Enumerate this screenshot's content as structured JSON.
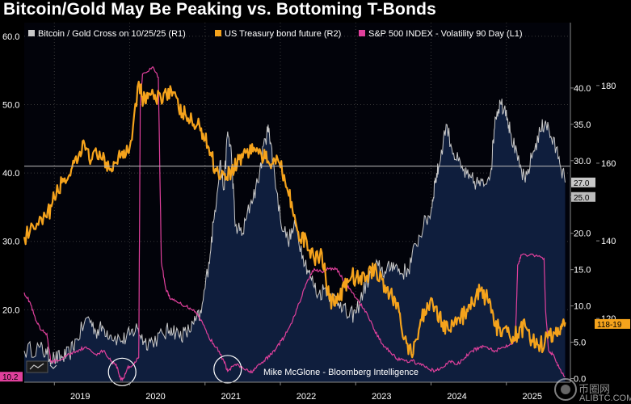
{
  "title": "Bitcoin/Gold May Be Peaking vs. Bottoming T-Bonds",
  "annotation": "Mike McGlone - Bloomberg Intelligence",
  "watermark": "币圈网",
  "watermark_url": "ALIBTC.COM",
  "colors": {
    "background": "#000000",
    "plot_bg": "#02030a",
    "area_fill": "#0f1e3d",
    "bitcoin_gold": "#c8c8c8",
    "treasury": "#f5a31c",
    "volatility": "#e0409c",
    "gridline": "#3a3a3a",
    "circle": "#ffffff"
  },
  "icons": {
    "chart_toggle": "chart-toggle-icon",
    "dropdown": "chevron-down-icon"
  },
  "chart_data": {
    "type": "line",
    "title": "Bitcoin/Gold May Be Peaking vs. Bottoming T-Bonds",
    "x_range": [
      2018.6,
      2025.85
    ],
    "x_ticks": [
      {
        "label": "2019",
        "value": 2019.0
      },
      {
        "label": "2020",
        "value": 2020.0
      },
      {
        "label": "2021",
        "value": 2021.0
      },
      {
        "label": "2022",
        "value": 2022.0
      },
      {
        "label": "2023",
        "value": 2023.0
      },
      {
        "label": "2024",
        "value": 2024.0
      },
      {
        "label": "2025",
        "value": 2025.0
      }
    ],
    "axes": {
      "L1": {
        "side": "left",
        "range": [
          9.4,
          62
        ],
        "ticks": [
          "20.0",
          "30.0",
          "40.0",
          "50.0",
          "60.0"
        ]
      },
      "R1": {
        "side": "right-inner",
        "range": [
          -0.5,
          49
        ],
        "ticks": [
          "0.0",
          "5.0",
          "10.0",
          "15.0",
          "20.0",
          "25.0",
          "30.0",
          "35.0",
          "40.0"
        ]
      },
      "R2": {
        "side": "right-outer",
        "range": [
          103.6,
          196.2
        ],
        "ticks": [
          "120",
          "140",
          "160",
          "180"
        ]
      }
    },
    "reference_line": {
      "axis": "L1",
      "value": 41
    },
    "series": [
      {
        "name": "Bitcoin / Gold Cross on 10/25/25 (R1)",
        "axis": "R1",
        "style": "area",
        "last_value_label": "27.0",
        "points": [
          [
            2018.6,
            3.8
          ],
          [
            2018.8,
            4.3
          ],
          [
            2018.9,
            3.3
          ],
          [
            2019.0,
            2.7
          ],
          [
            2019.1,
            2.9
          ],
          [
            2019.2,
            3.4
          ],
          [
            2019.3,
            5.5
          ],
          [
            2019.45,
            8.5
          ],
          [
            2019.55,
            6.5
          ],
          [
            2019.65,
            7.0
          ],
          [
            2019.75,
            6.0
          ],
          [
            2019.9,
            5.2
          ],
          [
            2020.0,
            6.0
          ],
          [
            2020.1,
            7.0
          ],
          [
            2020.2,
            5.0
          ],
          [
            2020.3,
            5.2
          ],
          [
            2020.45,
            6.0
          ],
          [
            2020.55,
            7.0
          ],
          [
            2020.65,
            6.0
          ],
          [
            2020.75,
            6.2
          ],
          [
            2020.85,
            7.5
          ],
          [
            2020.95,
            9.0
          ],
          [
            2021.05,
            16.0
          ],
          [
            2021.12,
            22.0
          ],
          [
            2021.2,
            30.0
          ],
          [
            2021.25,
            26.0
          ],
          [
            2021.3,
            34.0
          ],
          [
            2021.35,
            31.0
          ],
          [
            2021.4,
            21.0
          ],
          [
            2021.5,
            20.0
          ],
          [
            2021.6,
            24.0
          ],
          [
            2021.7,
            27.0
          ],
          [
            2021.8,
            33.0
          ],
          [
            2021.85,
            34.5
          ],
          [
            2021.9,
            30.0
          ],
          [
            2022.0,
            22.0
          ],
          [
            2022.1,
            19.0
          ],
          [
            2022.2,
            21.0
          ],
          [
            2022.3,
            17.0
          ],
          [
            2022.4,
            14.0
          ],
          [
            2022.5,
            11.5
          ],
          [
            2022.6,
            12.5
          ],
          [
            2022.7,
            11.0
          ],
          [
            2022.8,
            10.5
          ],
          [
            2022.9,
            8.5
          ],
          [
            2023.0,
            9.0
          ],
          [
            2023.1,
            12.0
          ],
          [
            2023.2,
            14.5
          ],
          [
            2023.3,
            15.5
          ],
          [
            2023.4,
            14.5
          ],
          [
            2023.5,
            16.0
          ],
          [
            2023.6,
            14.5
          ],
          [
            2023.7,
            15.0
          ],
          [
            2023.8,
            18.5
          ],
          [
            2023.9,
            21.0
          ],
          [
            2024.0,
            23.0
          ],
          [
            2024.05,
            27.0
          ],
          [
            2024.1,
            29.0
          ],
          [
            2024.2,
            35.0
          ],
          [
            2024.3,
            31.0
          ],
          [
            2024.4,
            29.0
          ],
          [
            2024.5,
            27.5
          ],
          [
            2024.6,
            27.0
          ],
          [
            2024.7,
            26.5
          ],
          [
            2024.8,
            29.0
          ],
          [
            2024.85,
            36.0
          ],
          [
            2024.92,
            38.0
          ],
          [
            2025.0,
            37.0
          ],
          [
            2025.05,
            34.0
          ],
          [
            2025.15,
            30.0
          ],
          [
            2025.25,
            27.0
          ],
          [
            2025.35,
            31.0
          ],
          [
            2025.45,
            34.0
          ],
          [
            2025.52,
            35.5
          ],
          [
            2025.6,
            33.0
          ],
          [
            2025.7,
            30.5
          ],
          [
            2025.78,
            27.0
          ]
        ]
      },
      {
        "name": "US Treasury bond future (R2)",
        "axis": "R2",
        "style": "line",
        "last_value_label": "118-19",
        "points": [
          [
            2018.6,
            141
          ],
          [
            2018.75,
            143
          ],
          [
            2018.9,
            146
          ],
          [
            2019.0,
            151
          ],
          [
            2019.1,
            155
          ],
          [
            2019.2,
            157
          ],
          [
            2019.3,
            160
          ],
          [
            2019.4,
            165
          ],
          [
            2019.5,
            161
          ],
          [
            2019.6,
            163
          ],
          [
            2019.7,
            158
          ],
          [
            2019.8,
            160
          ],
          [
            2019.9,
            163
          ],
          [
            2020.0,
            164
          ],
          [
            2020.12,
            181
          ],
          [
            2020.18,
            176
          ],
          [
            2020.25,
            178
          ],
          [
            2020.35,
            176
          ],
          [
            2020.45,
            178
          ],
          [
            2020.55,
            179
          ],
          [
            2020.65,
            174
          ],
          [
            2020.75,
            172
          ],
          [
            2020.85,
            170
          ],
          [
            2020.95,
            169
          ],
          [
            2021.05,
            164
          ],
          [
            2021.15,
            158
          ],
          [
            2021.25,
            157
          ],
          [
            2021.35,
            158
          ],
          [
            2021.45,
            161
          ],
          [
            2021.55,
            163
          ],
          [
            2021.65,
            164
          ],
          [
            2021.75,
            162
          ],
          [
            2021.85,
            160
          ],
          [
            2021.95,
            162
          ],
          [
            2022.05,
            157
          ],
          [
            2022.15,
            150
          ],
          [
            2022.25,
            140
          ],
          [
            2022.35,
            140
          ],
          [
            2022.45,
            135
          ],
          [
            2022.55,
            137
          ],
          [
            2022.65,
            125
          ],
          [
            2022.75,
            124
          ],
          [
            2022.85,
            128
          ],
          [
            2022.95,
            131
          ],
          [
            2023.05,
            130
          ],
          [
            2023.15,
            131
          ],
          [
            2023.25,
            133
          ],
          [
            2023.35,
            130
          ],
          [
            2023.45,
            126
          ],
          [
            2023.55,
            124
          ],
          [
            2023.65,
            115
          ],
          [
            2023.75,
            110
          ],
          [
            2023.85,
            118
          ],
          [
            2023.95,
            124
          ],
          [
            2024.05,
            123
          ],
          [
            2024.15,
            119
          ],
          [
            2024.25,
            117
          ],
          [
            2024.35,
            120
          ],
          [
            2024.45,
            121
          ],
          [
            2024.55,
            124
          ],
          [
            2024.65,
            127
          ],
          [
            2024.75,
            125
          ],
          [
            2024.85,
            118
          ],
          [
            2024.95,
            117
          ],
          [
            2025.05,
            115
          ],
          [
            2025.15,
            116
          ],
          [
            2025.25,
            118
          ],
          [
            2025.35,
            114
          ],
          [
            2025.45,
            113
          ],
          [
            2025.55,
            115
          ],
          [
            2025.65,
            116
          ],
          [
            2025.72,
            118
          ],
          [
            2025.78,
            119
          ]
        ]
      },
      {
        "name": "S&P 500 INDEX - Volatility 90 Day (L1)",
        "axis": "L1",
        "style": "line",
        "last_value_label": "10.2",
        "points": [
          [
            2018.6,
            22.5
          ],
          [
            2018.68,
            21.0
          ],
          [
            2018.75,
            18.5
          ],
          [
            2018.82,
            17.0
          ],
          [
            2018.9,
            16.5
          ],
          [
            2018.95,
            12.5
          ],
          [
            2019.05,
            12.5
          ],
          [
            2019.2,
            13.5
          ],
          [
            2019.3,
            14.0
          ],
          [
            2019.4,
            14.5
          ],
          [
            2019.55,
            13.5
          ],
          [
            2019.65,
            14.0
          ],
          [
            2019.75,
            12.5
          ],
          [
            2019.82,
            12.0
          ],
          [
            2019.88,
            9.8
          ],
          [
            2019.92,
            10.0
          ],
          [
            2019.97,
            11.5
          ],
          [
            2020.05,
            12.0
          ],
          [
            2020.12,
            13.0
          ],
          [
            2020.14,
            50.0
          ],
          [
            2020.17,
            54.5
          ],
          [
            2020.3,
            55.5
          ],
          [
            2020.38,
            54.0
          ],
          [
            2020.42,
            27.0
          ],
          [
            2020.48,
            23.0
          ],
          [
            2020.55,
            21.5
          ],
          [
            2020.65,
            21.0
          ],
          [
            2020.75,
            20.5
          ],
          [
            2020.85,
            20.0
          ],
          [
            2020.95,
            18.5
          ],
          [
            2021.05,
            16.0
          ],
          [
            2021.15,
            14.5
          ],
          [
            2021.25,
            12.5
          ],
          [
            2021.3,
            11.0
          ],
          [
            2021.4,
            12.0
          ],
          [
            2021.5,
            11.5
          ],
          [
            2021.6,
            10.8
          ],
          [
            2021.68,
            11.5
          ],
          [
            2021.78,
            12.5
          ],
          [
            2021.88,
            13.5
          ],
          [
            2021.95,
            14.5
          ],
          [
            2022.05,
            16.0
          ],
          [
            2022.15,
            18.0
          ],
          [
            2022.25,
            21.0
          ],
          [
            2022.35,
            24.0
          ],
          [
            2022.45,
            26.0
          ],
          [
            2022.55,
            25.5
          ],
          [
            2022.65,
            26.0
          ],
          [
            2022.75,
            26.0
          ],
          [
            2022.85,
            24.0
          ],
          [
            2022.95,
            22.5
          ],
          [
            2023.05,
            21.0
          ],
          [
            2023.15,
            19.5
          ],
          [
            2023.25,
            17.0
          ],
          [
            2023.35,
            15.0
          ],
          [
            2023.45,
            14.0
          ],
          [
            2023.55,
            12.8
          ],
          [
            2023.65,
            12.5
          ],
          [
            2023.75,
            12.5
          ],
          [
            2023.85,
            12.0
          ],
          [
            2023.95,
            11.5
          ],
          [
            2024.05,
            11.0
          ],
          [
            2024.15,
            11.5
          ],
          [
            2024.25,
            12.5
          ],
          [
            2024.35,
            12.0
          ],
          [
            2024.45,
            13.0
          ],
          [
            2024.55,
            14.0
          ],
          [
            2024.65,
            14.5
          ],
          [
            2024.75,
            14.5
          ],
          [
            2024.85,
            14.0
          ],
          [
            2024.95,
            14.5
          ],
          [
            2025.05,
            15.0
          ],
          [
            2025.12,
            15.5
          ],
          [
            2025.15,
            26.5
          ],
          [
            2025.2,
            28.0
          ],
          [
            2025.4,
            28.0
          ],
          [
            2025.5,
            27.5
          ],
          [
            2025.52,
            20.0
          ],
          [
            2025.56,
            14.0
          ],
          [
            2025.62,
            13.5
          ],
          [
            2025.7,
            11.5
          ],
          [
            2025.78,
            10.2
          ]
        ]
      }
    ],
    "value_flags": [
      {
        "label": "27.0",
        "axis": "R1",
        "value": 27.0
      },
      {
        "label": "25.0",
        "axis": "R1",
        "value": 25.0
      },
      {
        "label": "118-19",
        "axis": "R2",
        "value": 118.6
      },
      {
        "label": "10.2",
        "axis": "L1",
        "value": 10.2
      }
    ],
    "circles": [
      {
        "x": 2019.9,
        "axis": "L1",
        "value": 10.9
      },
      {
        "x": 2021.3,
        "axis": "L1",
        "value": 11.3
      }
    ]
  }
}
